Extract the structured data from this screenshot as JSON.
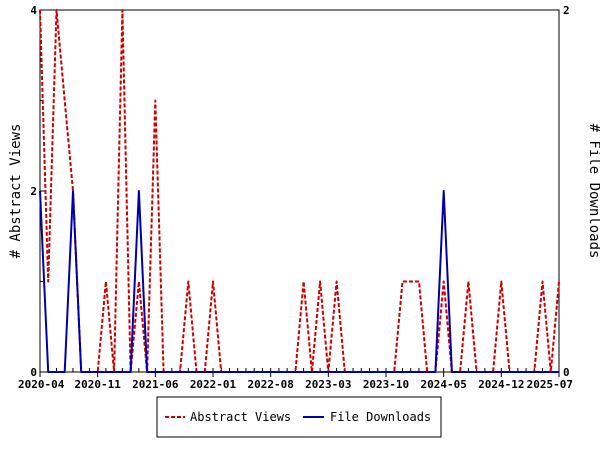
{
  "chart_data": {
    "type": "line",
    "x_ticks": [
      "2020-04",
      "2020-11",
      "2021-06",
      "2022-01",
      "2022-08",
      "2023-03",
      "2023-10",
      "2024-05",
      "2024-12",
      "2025-07"
    ],
    "x_range": [
      "2020-04",
      "2025-07"
    ],
    "ylabel_left": "# Abstract Views",
    "ylabel_right": "# File Downloads",
    "ylim_left": [
      0,
      4
    ],
    "ylim_right": [
      0,
      2
    ],
    "yticks_left": [
      "0",
      "2",
      "4"
    ],
    "yticks_right": [
      "0",
      "2"
    ],
    "grid": false,
    "legend_position": "bottom-center",
    "series": [
      {
        "name": "Abstract Views",
        "axis": "left",
        "color": "#cc0000",
        "style": "dashed",
        "x": [
          "2020-04",
          "2020-05",
          "2020-06",
          "2020-07",
          "2020-08",
          "2020-09",
          "2020-10",
          "2020-11",
          "2020-12",
          "2021-01",
          "2021-02",
          "2021-03",
          "2021-04",
          "2021-05",
          "2021-06",
          "2021-07",
          "2021-08",
          "2021-09",
          "2021-10",
          "2021-11",
          "2021-12",
          "2022-01",
          "2022-02",
          "2022-03",
          "2022-04",
          "2022-05",
          "2022-06",
          "2022-07",
          "2022-08",
          "2022-09",
          "2022-10",
          "2022-11",
          "2022-12",
          "2023-01",
          "2023-02",
          "2023-03",
          "2023-04",
          "2023-05",
          "2023-06",
          "2023-07",
          "2023-08",
          "2023-09",
          "2023-10",
          "2023-11",
          "2023-12",
          "2024-01",
          "2024-02",
          "2024-03",
          "2024-04",
          "2024-05",
          "2024-06",
          "2024-07",
          "2024-08",
          "2024-09",
          "2024-10",
          "2024-11",
          "2024-12",
          "2025-01",
          "2025-02",
          "2025-03",
          "2025-04",
          "2025-05",
          "2025-06",
          "2025-07"
        ],
        "values": [
          4,
          1,
          4,
          3,
          2,
          0,
          0,
          0,
          1,
          0,
          4,
          0,
          1,
          0,
          3,
          0,
          0,
          0,
          1,
          0,
          0,
          1,
          0,
          0,
          0,
          0,
          0,
          0,
          0,
          0,
          0,
          0,
          1,
          0,
          1,
          0,
          1,
          0,
          0,
          0,
          0,
          0,
          0,
          0,
          1,
          1,
          1,
          0,
          0,
          1,
          0,
          0,
          1,
          0,
          0,
          0,
          1,
          0,
          0,
          0,
          0,
          1,
          0,
          1
        ]
      },
      {
        "name": "File Downloads",
        "axis": "right",
        "color": "#0000aa",
        "style": "solid",
        "x": [
          "2020-04",
          "2020-05",
          "2020-06",
          "2020-07",
          "2020-08",
          "2020-09",
          "2020-10",
          "2020-11",
          "2020-12",
          "2021-01",
          "2021-02",
          "2021-03",
          "2021-04",
          "2021-05",
          "2021-06",
          "2021-07",
          "2021-08",
          "2021-09",
          "2021-10",
          "2021-11",
          "2021-12",
          "2022-01",
          "2022-02",
          "2022-03",
          "2022-04",
          "2022-05",
          "2022-06",
          "2022-07",
          "2022-08",
          "2022-09",
          "2022-10",
          "2022-11",
          "2022-12",
          "2023-01",
          "2023-02",
          "2023-03",
          "2023-04",
          "2023-05",
          "2023-06",
          "2023-07",
          "2023-08",
          "2023-09",
          "2023-10",
          "2023-11",
          "2023-12",
          "2024-01",
          "2024-02",
          "2024-03",
          "2024-04",
          "2024-05",
          "2024-06",
          "2024-07",
          "2024-08",
          "2024-09",
          "2024-10",
          "2024-11",
          "2024-12",
          "2025-01",
          "2025-02",
          "2025-03",
          "2025-04",
          "2025-05",
          "2025-06",
          "2025-07"
        ],
        "values": [
          1,
          0,
          0,
          0,
          1,
          0,
          0,
          0,
          0,
          0,
          0,
          0,
          1,
          0,
          0,
          0,
          0,
          0,
          0,
          0,
          0,
          0,
          0,
          0,
          0,
          0,
          0,
          0,
          0,
          0,
          0,
          0,
          0,
          0,
          0,
          0,
          0,
          0,
          0,
          0,
          0,
          0,
          0,
          0,
          0,
          0,
          0,
          0,
          0,
          1,
          0,
          0,
          0,
          0,
          0,
          0,
          0,
          0,
          0,
          0,
          0,
          0,
          0,
          0
        ]
      }
    ]
  }
}
